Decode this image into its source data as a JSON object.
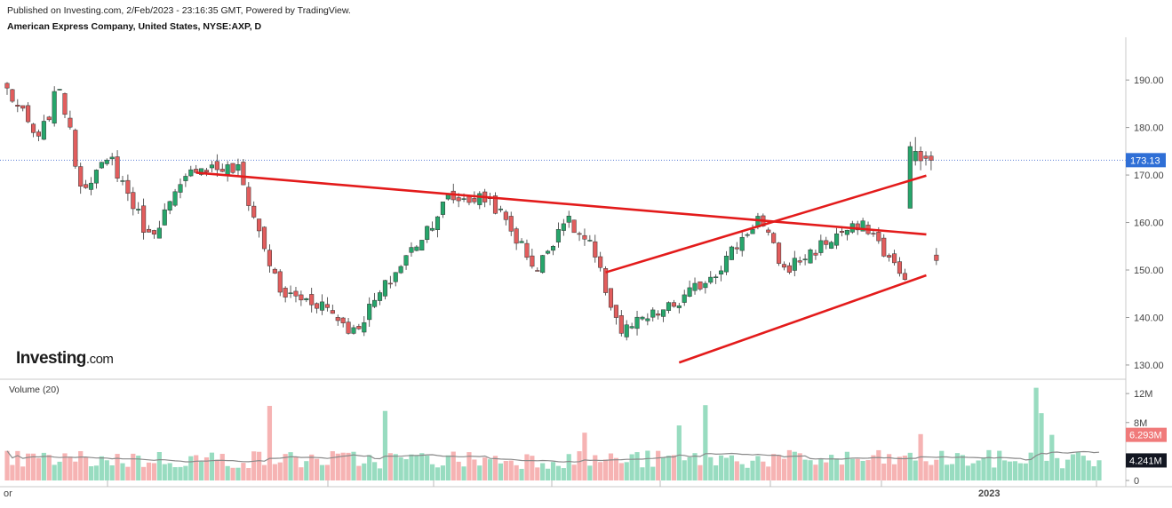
{
  "header": {
    "published": "Published on Investing.com, 2/Feb/2023 - 23:16:35 GMT, Powered by TradingView.",
    "symbol": "American Express Company, United States, NYSE:AXP, D"
  },
  "logo": {
    "brand": "Investing",
    "suffix": ".com"
  },
  "colors": {
    "up": "#26a66b",
    "down": "#e25d5d",
    "trendline": "#e31b1b",
    "vol_up": "#98dcc0",
    "vol_down": "#f6b3b3",
    "vol_ma": "#8a8a8a",
    "last_price_bg": "#2f6fd6",
    "vol_last_red_bg": "#f07a7a",
    "vol_ma_bg": "#131722"
  },
  "chart_data": [
    {
      "type": "candlestick",
      "title": "American Express Company, United States, NYSE:AXP, D",
      "y_ticks": [
        "190.00",
        "180.00",
        "170.00",
        "160.00",
        "150.00",
        "140.00",
        "130.00"
      ],
      "ylim": [
        127,
        199
      ],
      "x_tick_labels": [
        "or",
        "2023"
      ],
      "last_price": 173.13,
      "last_price_label": "173.13",
      "anchors": [
        [
          0,
          188
        ],
        [
          6,
          177
        ],
        [
          10,
          189
        ],
        [
          14,
          168
        ],
        [
          20,
          173
        ],
        [
          27,
          157
        ],
        [
          36,
          172
        ],
        [
          44,
          171
        ],
        [
          52,
          145
        ],
        [
          60,
          143
        ],
        [
          66,
          137
        ],
        [
          73,
          148
        ],
        [
          84,
          165
        ],
        [
          92,
          165
        ],
        [
          101,
          150
        ],
        [
          106,
          161
        ],
        [
          111,
          155
        ],
        [
          117,
          137
        ],
        [
          128,
          143
        ],
        [
          136,
          151
        ],
        [
          143,
          161
        ],
        [
          148,
          150
        ],
        [
          159,
          158
        ],
        [
          164,
          159
        ],
        [
          170,
          149
        ],
        [
          177,
          152
        ]
      ],
      "trendlines": [
        {
          "from": [
            36,
            170.5
          ],
          "to": [
            170,
            157.5
          ]
        },
        {
          "from": [
            114,
            149.5
          ],
          "to": [
            170,
            169.5
          ]
        },
        {
          "from": [
            128,
            130.5
          ],
          "to": [
            170,
            148.5
          ]
        }
      ],
      "gap_up": {
        "start": 172,
        "values": [
          [
            163,
            176,
            163,
            177
          ],
          [
            173,
            175,
            172,
            178
          ],
          [
            175,
            173,
            171,
            176
          ],
          [
            174,
            173.5,
            172,
            175
          ],
          [
            174,
            173.1,
            171,
            175
          ]
        ]
      }
    },
    {
      "type": "bar",
      "title": "Volume (20)",
      "y_ticks": [
        "12M",
        "8M",
        "0"
      ],
      "ylim": [
        0,
        13
      ],
      "last_volume_label": "6.293M",
      "volume_ma_label": "4.241M",
      "spikes": [
        [
          50,
          10.3
        ],
        [
          72,
          9.6
        ],
        [
          110,
          6.6
        ],
        [
          128,
          7.6
        ],
        [
          133,
          10.4
        ],
        [
          174,
          6.4
        ],
        [
          196,
          12.8
        ],
        [
          197,
          9.3
        ],
        [
          199,
          6.3
        ]
      ]
    }
  ]
}
